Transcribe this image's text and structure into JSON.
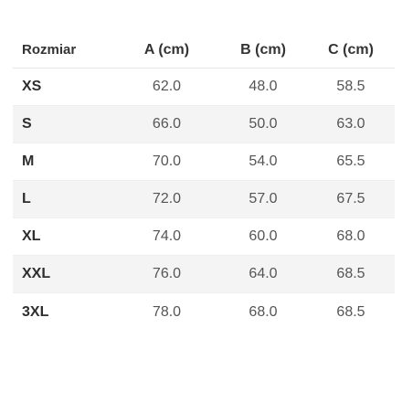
{
  "size_table": {
    "headers": [
      "Rozmiar",
      "A (cm)",
      "B (cm)",
      "C (cm)"
    ],
    "rows": [
      {
        "size": "XS",
        "a": "62.0",
        "b": "48.0",
        "c": "58.5"
      },
      {
        "size": "S",
        "a": "66.0",
        "b": "50.0",
        "c": "63.0"
      },
      {
        "size": "M",
        "a": "70.0",
        "b": "54.0",
        "c": "65.5"
      },
      {
        "size": "L",
        "a": "72.0",
        "b": "57.0",
        "c": "67.5"
      },
      {
        "size": "XL",
        "a": "74.0",
        "b": "60.0",
        "c": "68.0"
      },
      {
        "size": "XXL",
        "a": "76.0",
        "b": "64.0",
        "c": "68.5"
      },
      {
        "size": "3XL",
        "a": "78.0",
        "b": "68.0",
        "c": "68.5"
      }
    ]
  },
  "colors": {
    "stripe": "#f4f4f4",
    "header_text": "#333333",
    "value_text": "#555555"
  }
}
